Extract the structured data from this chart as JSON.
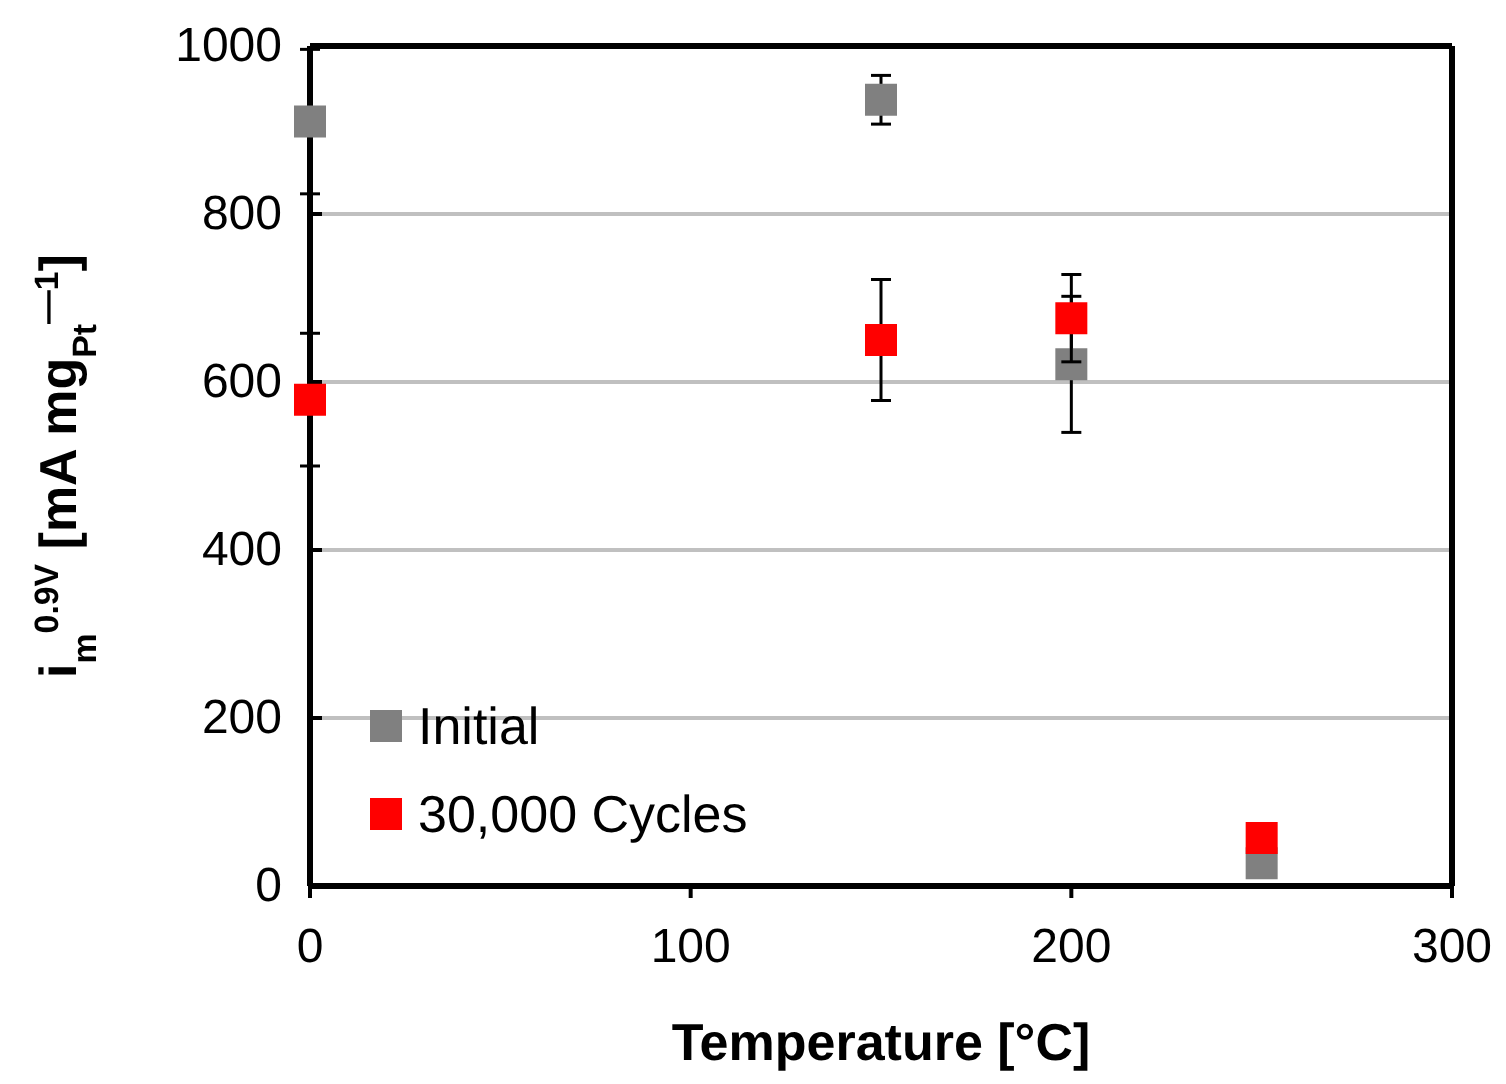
{
  "chart_data": {
    "type": "scatter",
    "xlabel": "Temperature [°C]",
    "ylabel": "i$_{m}$$^{0.9V}$ [mA mg$_{Pt}$$^{—1}$]",
    "x": [
      0,
      150,
      200,
      250
    ],
    "series": [
      {
        "name": "Initial",
        "color": "#808080",
        "values": [
          910,
          936,
          621,
          27
        ],
        "errors": [
          86,
          29,
          81,
          null
        ]
      },
      {
        "name": "30,000 Cycles",
        "color": "#ff0000",
        "values": [
          579,
          650,
          676,
          57
        ],
        "errors": [
          79,
          72,
          52,
          null
        ]
      }
    ],
    "xlim": [
      0,
      300
    ],
    "xticks": [
      0,
      100,
      200,
      300
    ],
    "ylim": [
      0,
      1000
    ],
    "yticks": [
      0,
      200,
      400,
      600,
      800,
      1000
    ],
    "grid": "y",
    "legend": "bottom left",
    "marker": "square"
  }
}
